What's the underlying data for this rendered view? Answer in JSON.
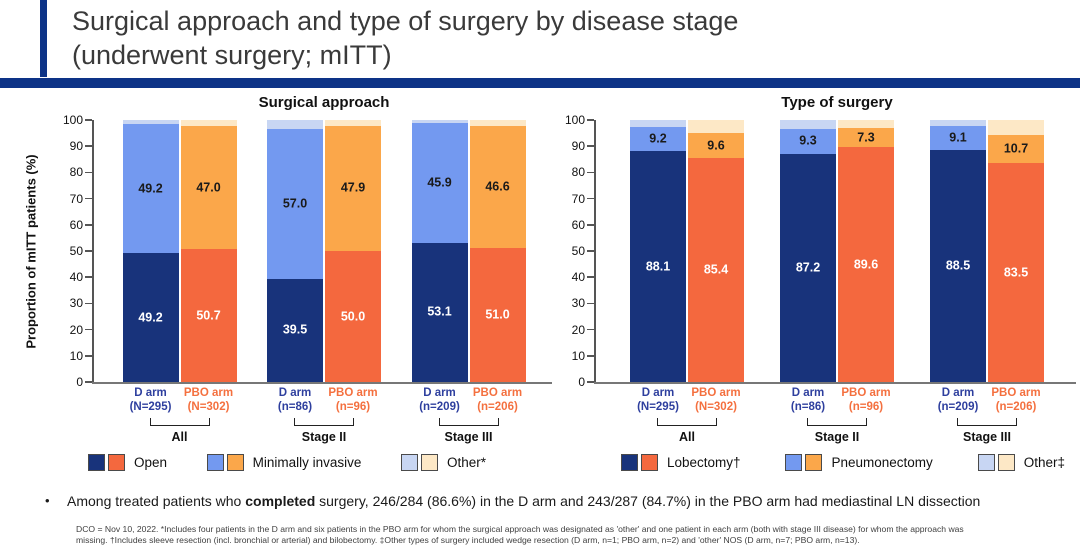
{
  "slide": {
    "title_line1": "Surgical approach and type of surgery by disease stage",
    "title_line2": "(underwent surgery; mITT)",
    "bullet": {
      "pre": "Among treated patients who ",
      "bold": "completed",
      "post": " surgery, 246/284 (86.6%) in the D arm and 243/287 (84.7%) in the PBO arm had mediastinal LN dissection"
    },
    "footnote_line1": "DCO = Nov 10, 2022. *Includes four patients in the D arm and six patients in the PBO arm for whom the surgical approach was designated as 'other' and one patient in each arm (both with stage III disease) for whom the approach was",
    "footnote_line2": "missing. †Includes sleeve resection (incl. bronchial or arterial) and bilobectomy. ‡Other types of surgery included wedge resection (D arm, n=1; PBO arm, n=2) and 'other' NOS (D arm, n=7; PBO arm, n=13)."
  },
  "colors": {
    "accent_navy": "#0D3387",
    "d_series": [
      "#18337B",
      "#7399F0",
      "#C8D6F3"
    ],
    "pbo_series": [
      "#F4683E",
      "#FBA74A",
      "#FDE8C6"
    ],
    "d_text": "#2E3F9E",
    "pbo_text": "#F4703F",
    "axis_gray": "#666666"
  },
  "chart_data": [
    {
      "type": "bar",
      "stacked": true,
      "title": "Surgical approach",
      "ylabel": "Proportion of mITT patients (%)",
      "ylim": [
        0,
        100
      ],
      "yticks": [
        0,
        10,
        20,
        30,
        40,
        50,
        60,
        70,
        80,
        90,
        100
      ],
      "grid": false,
      "legend_position": "bottom",
      "series_names": [
        "Open",
        "Minimally invasive",
        "Other*"
      ],
      "groups": [
        {
          "label": "All",
          "bars": [
            {
              "arm": "D arm",
              "n_label": "(N=295)",
              "segments": [
                49.2,
                49.2,
                1.6
              ],
              "segment_labels": [
                "49.2",
                "49.2",
                ""
              ]
            },
            {
              "arm": "PBO arm",
              "n_label": "(N=302)",
              "segments": [
                50.7,
                47.0,
                2.3
              ],
              "segment_labels": [
                "50.7",
                "47.0",
                ""
              ]
            }
          ]
        },
        {
          "label": "Stage II",
          "bars": [
            {
              "arm": "D arm",
              "n_label": "(n=86)",
              "segments": [
                39.5,
                57.0,
                3.5
              ],
              "segment_labels": [
                "39.5",
                "57.0",
                ""
              ]
            },
            {
              "arm": "PBO arm",
              "n_label": "(n=96)",
              "segments": [
                50.0,
                47.9,
                2.1
              ],
              "segment_labels": [
                "50.0",
                "47.9",
                ""
              ]
            }
          ]
        },
        {
          "label": "Stage III",
          "bars": [
            {
              "arm": "D arm",
              "n_label": "(n=209)",
              "segments": [
                53.1,
                45.9,
                1.0
              ],
              "segment_labels": [
                "53.1",
                "45.9",
                ""
              ]
            },
            {
              "arm": "PBO arm",
              "n_label": "(n=206)",
              "segments": [
                51.0,
                46.6,
                2.4
              ],
              "segment_labels": [
                "51.0",
                "46.6",
                ""
              ]
            }
          ]
        }
      ],
      "legend": [
        {
          "label": "Open"
        },
        {
          "label": "Minimally invasive"
        },
        {
          "label": "Other*"
        }
      ]
    },
    {
      "type": "bar",
      "stacked": true,
      "title": "Type of surgery",
      "ylabel": "",
      "ylim": [
        0,
        100
      ],
      "yticks": [
        0,
        10,
        20,
        30,
        40,
        50,
        60,
        70,
        80,
        90,
        100
      ],
      "grid": false,
      "legend_position": "bottom",
      "series_names": [
        "Lobectomy†",
        "Pneumonectomy",
        "Other‡"
      ],
      "groups": [
        {
          "label": "All",
          "bars": [
            {
              "arm": "D arm",
              "n_label": "(N=295)",
              "segments": [
                88.1,
                9.2,
                2.7
              ],
              "segment_labels": [
                "88.1",
                "9.2",
                ""
              ]
            },
            {
              "arm": "PBO arm",
              "n_label": "(N=302)",
              "segments": [
                85.4,
                9.6,
                5.0
              ],
              "segment_labels": [
                "85.4",
                "9.6",
                ""
              ]
            }
          ]
        },
        {
          "label": "Stage II",
          "bars": [
            {
              "arm": "D arm",
              "n_label": "(n=86)",
              "segments": [
                87.2,
                9.3,
                3.5
              ],
              "segment_labels": [
                "87.2",
                "9.3",
                ""
              ]
            },
            {
              "arm": "PBO arm",
              "n_label": "(n=96)",
              "segments": [
                89.6,
                7.3,
                3.1
              ],
              "segment_labels": [
                "89.6",
                "7.3",
                ""
              ]
            }
          ]
        },
        {
          "label": "Stage III",
          "bars": [
            {
              "arm": "D arm",
              "n_label": "(n=209)",
              "segments": [
                88.5,
                9.1,
                2.4
              ],
              "segment_labels": [
                "88.5",
                "9.1",
                ""
              ]
            },
            {
              "arm": "PBO arm",
              "n_label": "(n=206)",
              "segments": [
                83.5,
                10.7,
                5.8
              ],
              "segment_labels": [
                "83.5",
                "10.7",
                ""
              ]
            }
          ]
        }
      ],
      "legend": [
        {
          "label": "Lobectomy†"
        },
        {
          "label": "Pneumonectomy"
        },
        {
          "label": "Other‡"
        }
      ]
    }
  ]
}
